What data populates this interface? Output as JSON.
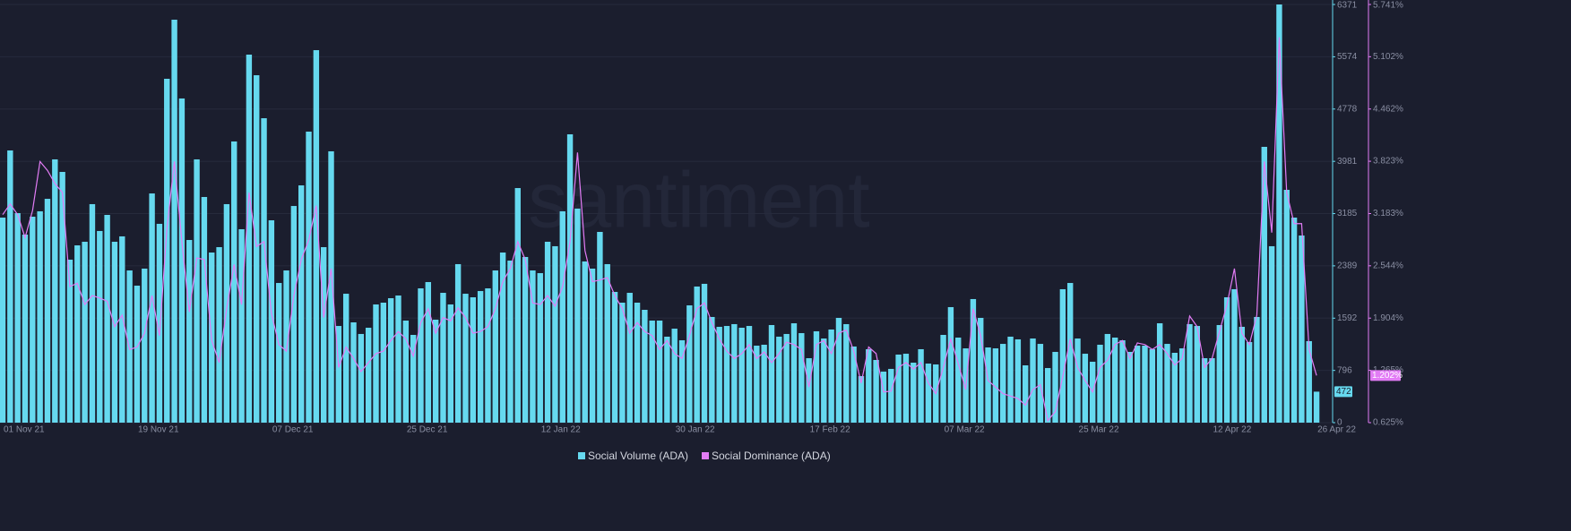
{
  "chart_data": {
    "type": "bar-line",
    "watermark": "santiment",
    "grid": true,
    "categories": [
      "01 Nov 21",
      null,
      null,
      null,
      null,
      null,
      null,
      null,
      null,
      null,
      null,
      null,
      null,
      null,
      null,
      null,
      null,
      null,
      "19 Nov 21",
      null,
      null,
      null,
      null,
      null,
      null,
      null,
      null,
      null,
      null,
      null,
      null,
      null,
      null,
      null,
      null,
      null,
      "07 Dec 21",
      null,
      null,
      null,
      null,
      null,
      null,
      null,
      null,
      null,
      null,
      null,
      null,
      null,
      null,
      null,
      null,
      null,
      "25 Dec 21",
      null,
      null,
      null,
      null,
      null,
      null,
      null,
      null,
      null,
      null,
      null,
      null,
      null,
      null,
      null,
      null,
      null,
      "12 Jan 22",
      null,
      null,
      null,
      null,
      null,
      null,
      null,
      null,
      null,
      null,
      null,
      null,
      null,
      null,
      null,
      null,
      null,
      "30 Jan 22",
      null,
      null,
      null,
      null,
      null,
      null,
      null,
      null,
      null,
      null,
      null,
      null,
      null,
      null,
      null,
      null,
      null,
      "17 Feb 22",
      null,
      null,
      null,
      null,
      null,
      null,
      null,
      null,
      null,
      null,
      null,
      null,
      null,
      null,
      null,
      null,
      null,
      "07 Mar 22",
      null,
      null,
      null,
      null,
      null,
      null,
      null,
      null,
      null,
      null,
      null,
      null,
      null,
      null,
      null,
      null,
      null,
      "25 Mar 22",
      null,
      null,
      null,
      null,
      null,
      null,
      null,
      null,
      null,
      null,
      null,
      null,
      null,
      null,
      null,
      null,
      null,
      "12 Apr 22",
      null,
      null,
      null,
      null,
      null,
      null,
      null,
      null,
      null,
      null,
      null,
      null,
      null,
      "26 Apr 22"
    ],
    "series": [
      {
        "name": "Social Volume (ADA)",
        "color": "#66d9ef",
        "kind": "bar",
        "values": [
          3124,
          4147,
          3192,
          2865,
          3138,
          3220,
          3410,
          4011,
          3820,
          2483,
          2701,
          2756,
          3329,
          2920,
          3165,
          2756,
          2838,
          2319,
          2087,
          2347,
          3492,
          3029,
          5239,
          6139,
          4939,
          2783,
          4011,
          3438,
          2592,
          2674,
          3329,
          4284,
          2947,
          5607,
          5293,
          4638,
          3083,
          2128,
          2319,
          3301,
          3615,
          4434,
          5675,
          2674,
          4134,
          1473,
          1964,
          1528,
          1351,
          1446,
          1801,
          1828,
          1896,
          1937,
          1555,
          1337,
          2046,
          2142,
          1569,
          1978,
          1801,
          2415,
          1964,
          1910,
          2005,
          2046,
          2319,
          2592,
          2469,
          3574,
          2524,
          2319,
          2278,
          2756,
          2688,
          3220,
          4393,
          3261,
          2456,
          2347,
          2906,
          2415,
          1992,
          1828,
          1978,
          1828,
          1719,
          1555,
          1555,
          1310,
          1432,
          1255,
          1787,
          2074,
          2115,
          1610,
          1460,
          1473,
          1501,
          1446,
          1473,
          1173,
          1187,
          1487,
          1310,
          1351,
          1514,
          1364,
          982,
          1392,
          1282,
          1419,
          1596,
          1501,
          1160,
          709,
          1119,
          955,
          778,
          819,
          1037,
          1050,
          914,
          1119,
          900,
          887,
          1337,
          1760,
          1296,
          1132,
          1883,
          1596,
          1146,
          1132,
          1200,
          1310,
          1269,
          873,
          1282,
          1200,
          832,
          1078,
          2033,
          2128,
          1282,
          1050,
          928,
          1187,
          1351,
          1296,
          1255,
          1078,
          1173,
          1173,
          1119,
          1514,
          1200,
          1064,
          1132,
          1501,
          1473,
          982,
          982,
          1487,
          1910,
          2033,
          1460,
          1228,
          1610,
          4202,
          2688,
          6371,
          3547,
          3124,
          2851,
          1242,
          472
        ]
      },
      {
        "name": "Social Dominance (ADA)",
        "color": "#e27cf5",
        "kind": "line",
        "axis": "y2",
        "badge_label": "1.202%",
        "values": [
          3.17,
          3.3,
          3.17,
          2.89,
          3.22,
          3.82,
          3.71,
          3.55,
          3.44,
          2.29,
          2.33,
          2.07,
          2.18,
          2.15,
          2.11,
          1.8,
          1.94,
          1.52,
          1.55,
          1.72,
          2.18,
          1.69,
          3.0,
          3.82,
          2.84,
          1.98,
          2.64,
          2.62,
          1.63,
          1.36,
          2.02,
          2.56,
          2.07,
          3.44,
          2.78,
          2.84,
          1.96,
          1.58,
          1.5,
          2.18,
          2.62,
          2.86,
          3.28,
          1.91,
          2.51,
          1.3,
          1.55,
          1.41,
          1.25,
          1.36,
          1.47,
          1.5,
          1.63,
          1.74,
          1.65,
          1.44,
          1.85,
          2.02,
          1.72,
          1.91,
          1.87,
          2.03,
          1.91,
          1.72,
          1.74,
          1.8,
          2.02,
          2.35,
          2.51,
          2.84,
          2.62,
          2.09,
          2.07,
          2.18,
          2.05,
          2.29,
          2.84,
          3.93,
          2.73,
          2.35,
          2.37,
          2.4,
          2.18,
          2.02,
          1.72,
          1.85,
          1.74,
          1.69,
          1.52,
          1.63,
          1.47,
          1.41,
          1.69,
          2.02,
          2.09,
          1.85,
          1.65,
          1.5,
          1.41,
          1.47,
          1.58,
          1.41,
          1.49,
          1.36,
          1.47,
          1.61,
          1.58,
          1.52,
          1.06,
          1.58,
          1.63,
          1.47,
          1.72,
          1.76,
          1.5,
          1.11,
          1.55,
          1.47,
          1.0,
          1.01,
          1.3,
          1.36,
          1.28,
          1.36,
          1.11,
          0.98,
          1.3,
          1.65,
          1.35,
          1.03,
          2.02,
          1.69,
          1.14,
          1.06,
          0.98,
          0.95,
          0.92,
          0.84,
          1.03,
          1.09,
          0.65,
          0.76,
          1.19,
          1.65,
          1.3,
          1.14,
          1.0,
          1.3,
          1.39,
          1.58,
          1.63,
          1.41,
          1.6,
          1.58,
          1.52,
          1.58,
          1.47,
          1.33,
          1.41,
          1.93,
          1.8,
          1.3,
          1.41,
          1.74,
          2.07,
          2.51,
          1.72,
          1.58,
          1.94,
          3.82,
          2.95,
          5.34,
          3.44,
          3.06,
          3.06,
          1.52,
          1.202
        ]
      }
    ],
    "ylim": [
      0,
      6371
    ],
    "yticks": [
      0,
      796,
      1592,
      2389,
      3185,
      3981,
      4778,
      5574,
      6371
    ],
    "y2lim": [
      0.625,
      5.741
    ],
    "y2ticks": [
      {
        "value": 0.625,
        "label": "0.625%"
      },
      {
        "value": 1.265,
        "label": "1.265%"
      },
      {
        "value": 1.904,
        "label": "1.904%"
      },
      {
        "value": 2.544,
        "label": "2.544%"
      },
      {
        "value": 3.183,
        "label": "3.183%"
      },
      {
        "value": 3.823,
        "label": "3.823%"
      },
      {
        "value": 4.462,
        "label": "4.462%"
      },
      {
        "value": 5.102,
        "label": "5.102%"
      },
      {
        "value": 5.741,
        "label": "5.741%"
      }
    ]
  }
}
